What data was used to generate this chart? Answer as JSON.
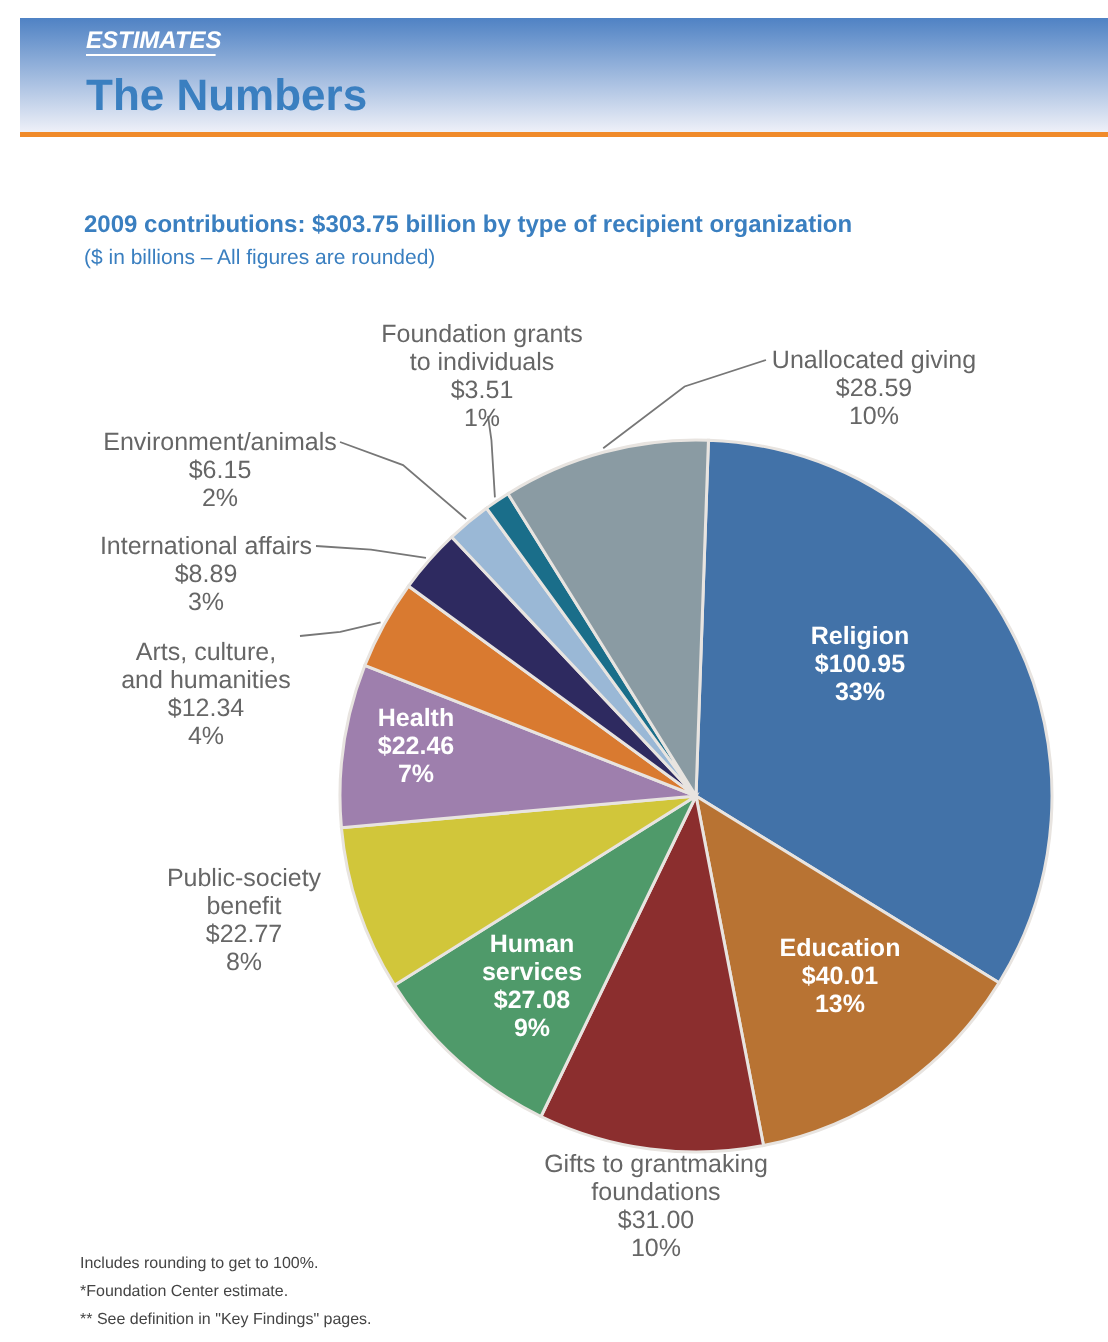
{
  "chart_data": {
    "type": "pie",
    "title": "The Numbers",
    "subtitle": "2009 contributions: $303.75 billion by type of recipient organization",
    "annotations": [
      "ESTIMATES",
      "($ in billions – All figures are rounded)",
      "Includes rounding to get to 100%.",
      "*Foundation Center estimate.",
      "** See definition in \"Key Findings\" pages."
    ],
    "categories": [
      "Religion",
      "Education",
      "Gifts to grantmaking foundations",
      "Human services",
      "Public-society benefit",
      "Health",
      "Arts, culture, and humanities",
      "International affairs",
      "Environment/animals",
      "Foundation grants to individuals",
      "Unallocated giving"
    ],
    "values": [
      100.95,
      40.01,
      31.0,
      27.08,
      22.77,
      22.46,
      12.34,
      8.89,
      6.15,
      3.51,
      28.59
    ],
    "value_labels": [
      "$100.95\n33%",
      "$40.01\n13%",
      "$31.00\n10%",
      "$27.08\n9%",
      "$22.77\n8%",
      "$22.46\n7%",
      "$12.34\n4%",
      "$8.89\n3%",
      "$6.15\n2%",
      "$3.51\n1%",
      "$28.59\n10%"
    ],
    "colors": [
      "#4272a8",
      "#b87333",
      "#8b2e2e",
      "#4f9a6a",
      "#d1c63a",
      "#9e7fad",
      "#d97a30",
      "#2e2a60",
      "#9ab8d6",
      "#1a6e8a",
      "#8a9ba3"
    ]
  }
}
